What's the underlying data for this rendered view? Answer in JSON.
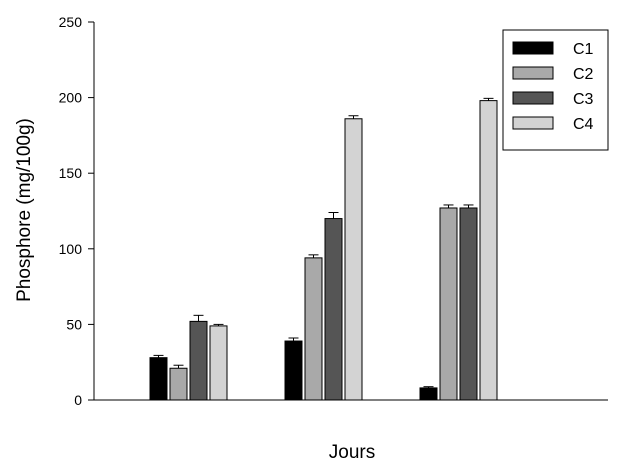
{
  "chart_data": {
    "type": "bar",
    "title": "",
    "xlabel": "Jours",
    "ylabel": "Phosphore (mg/100g)",
    "ylim": [
      0,
      250
    ],
    "yticks": [
      0,
      50,
      100,
      150,
      200,
      250
    ],
    "categories": [
      "",
      "",
      ""
    ],
    "series": [
      {
        "name": "C1",
        "color": "#000000",
        "values": [
          28,
          39,
          8
        ],
        "errors": [
          1.5,
          2,
          0.8
        ]
      },
      {
        "name": "C2",
        "color": "#a9a9a9",
        "values": [
          21,
          94,
          127
        ],
        "errors": [
          2,
          2,
          2
        ]
      },
      {
        "name": "C3",
        "color": "#555555",
        "values": [
          52,
          120,
          127
        ],
        "errors": [
          4,
          4,
          2
        ]
      },
      {
        "name": "C4",
        "color": "#d3d3d3",
        "values": [
          49,
          186,
          198
        ],
        "errors": [
          1,
          2,
          1.5
        ]
      }
    ],
    "grid": false,
    "legend_position": "top-right"
  }
}
